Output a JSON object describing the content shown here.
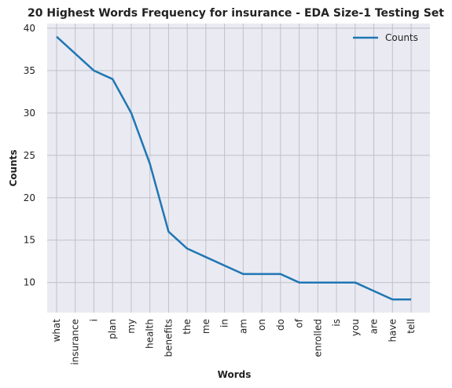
{
  "chart_data": {
    "type": "line",
    "title": "20 Highest Words Frequency for insurance - EDA Size-1 Testing Set",
    "xlabel": "Words",
    "ylabel": "Counts",
    "categories": [
      "what",
      "insurance",
      "i",
      "plan",
      "my",
      "health",
      "benefits",
      "the",
      "me",
      "in",
      "am",
      "on",
      "do",
      "of",
      "enrolled",
      "is",
      "you",
      "are",
      "have",
      "tell"
    ],
    "series": [
      {
        "name": "Counts",
        "values": [
          39,
          37,
          35,
          34,
          30,
          24,
          16,
          14,
          13,
          12,
          11,
          11,
          11,
          10,
          10,
          10,
          10,
          9,
          8,
          8
        ],
        "color": "#1f77b4"
      }
    ],
    "ylim": [
      6.45,
      40.55
    ],
    "yticks": [
      10,
      15,
      20,
      25,
      30,
      35,
      40
    ],
    "grid": true,
    "legend": "top-right",
    "background_color": "#eaeaf2",
    "grid_color": "#c0c0c8"
  }
}
